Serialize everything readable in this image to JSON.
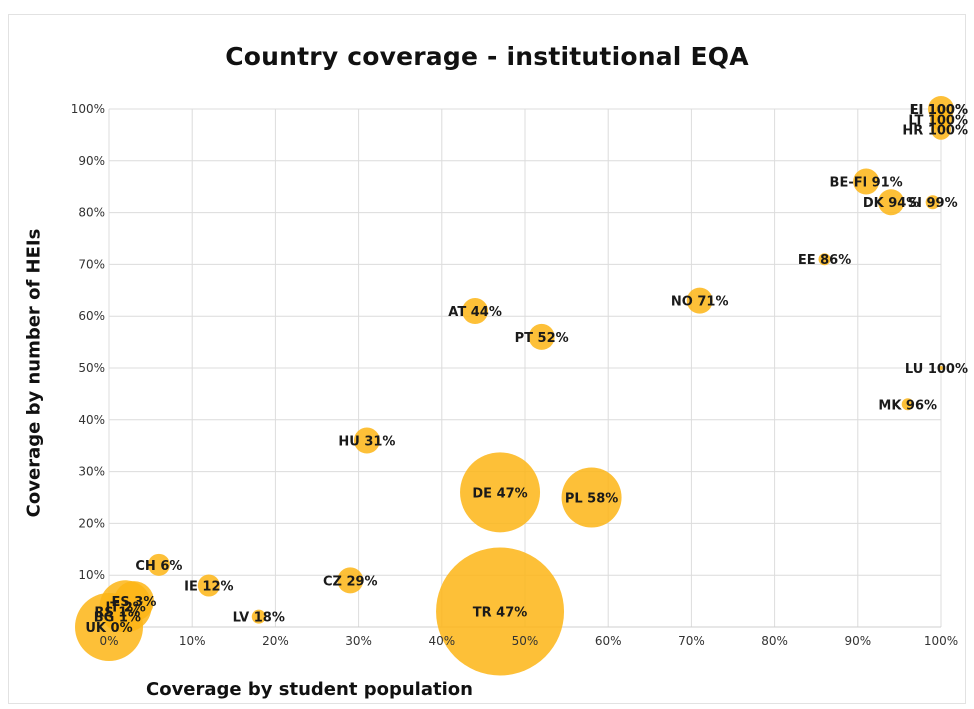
{
  "chart_data": {
    "type": "scatter",
    "subtype": "bubble",
    "title": "Country coverage - institutional EQA",
    "xlabel": "Coverage by student population",
    "ylabel": "Coverage by number of HEIs",
    "xlim": [
      0,
      1
    ],
    "ylim": [
      0,
      1
    ],
    "x_ticks": [
      "0%",
      "10%",
      "20%",
      "30%",
      "40%",
      "50%",
      "60%",
      "70%",
      "80%",
      "90%",
      "100%"
    ],
    "y_ticks": [
      "10%",
      "20%",
      "30%",
      "40%",
      "50%",
      "60%",
      "70%",
      "80%",
      "90%",
      "100%"
    ],
    "grid": true,
    "bubble_color": "#fdb515",
    "points": [
      {
        "label": "UK 0%",
        "x": 0.0,
        "y": 0.0,
        "size": 34
      },
      {
        "label": "RS 1%",
        "x": 0.01,
        "y": 0.03,
        "size": 14
      },
      {
        "label": "IT 2%",
        "x": 0.02,
        "y": 0.04,
        "size": 26
      },
      {
        "label": "BG 1%",
        "x": 0.01,
        "y": 0.02,
        "size": 14
      },
      {
        "label": "ES 3%",
        "x": 0.03,
        "y": 0.05,
        "size": 20
      },
      {
        "label": "CH 6%",
        "x": 0.06,
        "y": 0.12,
        "size": 11
      },
      {
        "label": "IE 12%",
        "x": 0.12,
        "y": 0.08,
        "size": 11
      },
      {
        "label": "LV 18%",
        "x": 0.18,
        "y": 0.02,
        "size": 7
      },
      {
        "label": "CZ 29%",
        "x": 0.29,
        "y": 0.09,
        "size": 13
      },
      {
        "label": "HU 31%",
        "x": 0.31,
        "y": 0.36,
        "size": 13
      },
      {
        "label": "TR 47%",
        "x": 0.47,
        "y": 0.03,
        "size": 64
      },
      {
        "label": "DE 47%",
        "x": 0.47,
        "y": 0.26,
        "size": 40
      },
      {
        "label": "PL 58%",
        "x": 0.58,
        "y": 0.25,
        "size": 30
      },
      {
        "label": "AT 44%",
        "x": 0.44,
        "y": 0.61,
        "size": 13
      },
      {
        "label": "PT 52%",
        "x": 0.52,
        "y": 0.56,
        "size": 13
      },
      {
        "label": "NO 71%",
        "x": 0.71,
        "y": 0.63,
        "size": 13
      },
      {
        "label": "EE 86%",
        "x": 0.86,
        "y": 0.71,
        "size": 6
      },
      {
        "label": "BE-Fl 91%",
        "x": 0.91,
        "y": 0.86,
        "size": 13
      },
      {
        "label": "DK 94%",
        "x": 0.94,
        "y": 0.82,
        "size": 13
      },
      {
        "label": "SI 99%",
        "x": 0.99,
        "y": 0.82,
        "size": 7
      },
      {
        "label": "HR 100%",
        "x": 1.0,
        "y": 0.96,
        "size": 10
      },
      {
        "label": "LI 100%",
        "x": 1.0,
        "y": 1.0,
        "size": 5
      },
      {
        "label": "FI 100%",
        "x": 1.0,
        "y": 1.0,
        "size": 13
      },
      {
        "label": "LT 100%",
        "x": 1.0,
        "y": 0.98,
        "size": 11
      },
      {
        "label": "LU 100%",
        "x": 1.0,
        "y": 0.5,
        "size": 2
      },
      {
        "label": "MK 96%",
        "x": 0.96,
        "y": 0.43,
        "size": 6
      }
    ]
  }
}
